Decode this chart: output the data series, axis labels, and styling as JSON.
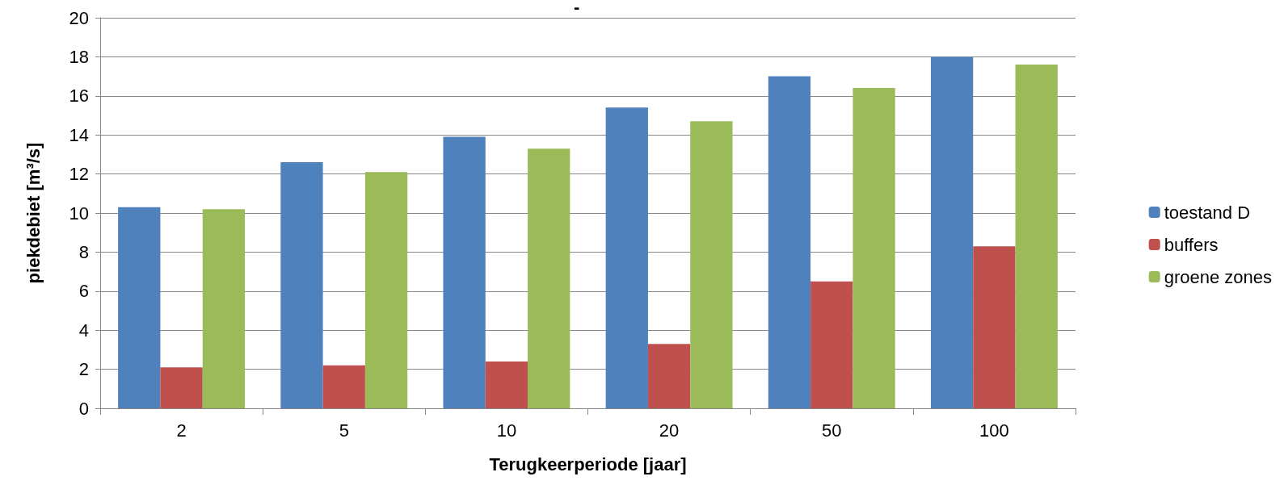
{
  "chart_data": {
    "type": "bar",
    "title": "-",
    "xlabel": "Terugkeerperiode [jaar]",
    "ylabel": "piekdebiet [m³/s]",
    "categories": [
      "2",
      "5",
      "10",
      "20",
      "50",
      "100"
    ],
    "series": [
      {
        "name": "toestand D",
        "color": "#4f81bd",
        "values": [
          10.3,
          12.6,
          13.9,
          15.4,
          17.0,
          18.0
        ]
      },
      {
        "name": "buffers",
        "color": "#c0504d",
        "values": [
          2.1,
          2.2,
          2.4,
          3.3,
          6.5,
          8.3
        ]
      },
      {
        "name": "groene zones",
        "color": "#9bbb59",
        "values": [
          10.2,
          12.1,
          13.3,
          14.7,
          16.4,
          17.6
        ]
      }
    ],
    "ylim": [
      0,
      20
    ],
    "yticks": [
      0,
      2,
      4,
      6,
      8,
      10,
      12,
      14,
      16,
      18,
      20
    ],
    "grid": "y",
    "legend": "right"
  }
}
